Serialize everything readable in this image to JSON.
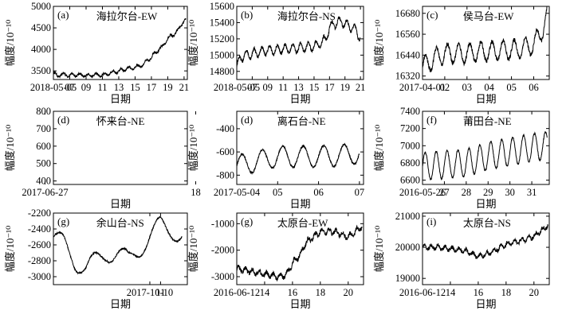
{
  "chart_data": [
    {
      "type": "line",
      "panel_label": "(a)",
      "title": "海拉尔台-EW",
      "xlabel": "日期",
      "ylabel": "幅度/10⁻¹⁰",
      "xlim": [
        5,
        21.4
      ],
      "ylim": [
        3300,
        5000
      ],
      "xticks": [
        5,
        7,
        9,
        11,
        13,
        15,
        17,
        19,
        21
      ],
      "xtick_labels": [
        "2018-05-05",
        "07",
        "09",
        "11",
        "13",
        "15",
        "17",
        "19",
        "21"
      ],
      "yticks": [
        3500,
        4000,
        4500,
        5000
      ],
      "ytick_labels": [
        "3500",
        "4000",
        "4500",
        "5000"
      ],
      "series": [
        {
          "x": [
            5,
            5.5,
            6,
            7,
            8,
            9,
            10,
            11,
            12,
            12.5,
            13,
            13.5,
            14,
            14.5,
            15,
            15.5,
            16,
            16.5,
            17,
            17.3,
            17.8,
            18.3,
            18.8,
            19.3,
            19.8,
            20.3,
            20.8,
            21.2
          ],
          "y": [
            3450,
            3380,
            3420,
            3400,
            3410,
            3390,
            3410,
            3400,
            3450,
            3480,
            3500,
            3520,
            3550,
            3560,
            3580,
            3620,
            3640,
            3750,
            3800,
            3900,
            3980,
            4050,
            4200,
            4300,
            4350,
            4450,
            4620,
            4680
          ],
          "noise": 25,
          "wave_period": 1,
          "wave_amp": 35
        }
      ]
    },
    {
      "type": "line",
      "panel_label": "(b)",
      "title": "海拉尔台-NS",
      "xlabel": "日期",
      "ylabel": "幅度/10⁻¹⁰",
      "xlim": [
        5,
        21.4
      ],
      "ylim": [
        14700,
        15600
      ],
      "xticks": [
        5,
        7,
        9,
        11,
        13,
        15,
        17,
        19,
        21
      ],
      "xtick_labels": [
        "2018-05-05",
        "07",
        "09",
        "11",
        "13",
        "15",
        "17",
        "19",
        "21"
      ],
      "yticks": [
        14800,
        15000,
        15200,
        15400,
        15600
      ],
      "ytick_labels": [
        "14800",
        "15000",
        "15200",
        "15400",
        "15600"
      ],
      "series": [
        {
          "x": [
            5,
            5.5,
            6,
            7,
            8,
            9,
            10,
            11,
            12,
            13,
            14,
            15,
            16,
            16.5,
            17,
            17.5,
            18,
            18.5,
            19,
            19.5,
            20,
            20.5,
            21
          ],
          "y": [
            14860,
            14960,
            15000,
            15020,
            15040,
            15060,
            15060,
            15080,
            15080,
            15090,
            15100,
            15110,
            15150,
            15200,
            15330,
            15380,
            15400,
            15420,
            15380,
            15360,
            15330,
            15300,
            15200
          ],
          "noise": 20,
          "wave_period": 1,
          "wave_amp": 55
        }
      ]
    },
    {
      "type": "line",
      "panel_label": "(c)",
      "title": "侯马台-EW",
      "xlabel": "日期",
      "ylabel": "幅度/10⁻¹⁰",
      "xlim": [
        1,
        6.7
      ],
      "ylim": [
        16300,
        16720
      ],
      "xticks": [
        1,
        2,
        3,
        4,
        5,
        6
      ],
      "xtick_labels": [
        "2017-04-01",
        "02",
        "03",
        "04",
        "05",
        "06"
      ],
      "yticks": [
        16320,
        16440,
        16560,
        16680
      ],
      "ytick_labels": [
        "16320",
        "16440",
        "16560",
        "16680"
      ],
      "series": [
        {
          "x": [
            1,
            1.5,
            2,
            2.5,
            3,
            3.5,
            4,
            4.5,
            5,
            5.5,
            6,
            6.3,
            6.6
          ],
          "y": [
            16370,
            16420,
            16450,
            16450,
            16450,
            16460,
            16460,
            16470,
            16470,
            16480,
            16500,
            16560,
            16660
          ],
          "noise": 12,
          "wave_period": 0.5,
          "wave_amp": 55
        }
      ]
    },
    {
      "type": "line",
      "panel_label": "(d)",
      "title": "怀来台-NE",
      "xlabel": "日期",
      "ylabel": "幅度/10⁻¹⁰",
      "xlim": [
        26.5,
        18.5
      ],
      "ylim": [
        380,
        800
      ],
      "xticks": [
        27,
        18
      ],
      "xtick_labels": [
        "2017-06-27",
        "18"
      ],
      "yticks": [
        400,
        500,
        600,
        700,
        800
      ],
      "ytick_labels": [
        "400",
        "500",
        "600",
        "700",
        "800"
      ],
      "series": [
        {
          "x": [
            26.5,
            26.9,
            27.2,
            27.7,
            28.1,
            28.6,
            29.2,
            29.9,
            30.5,
            31.2,
            31.9,
            32.6,
            33.3,
            33.7,
            34
          ],
          "y": [
            500,
            640,
            720,
            700,
            470,
            430,
            560,
            680,
            560,
            460,
            560,
            700,
            600,
            430,
            470
          ],
          "noise": 6,
          "wave_period": 0.5,
          "wave_amp": 14
        }
      ]
    },
    {
      "type": "line",
      "panel_label": "(d)",
      "title": "离石台-NE",
      "xlabel": "日期",
      "ylabel": "幅度/10⁻¹⁰",
      "xlim": [
        4,
        7.1
      ],
      "ylim": [
        -880,
        -250
      ],
      "xticks": [
        4,
        5,
        6,
        7
      ],
      "xtick_labels": [
        "2017-05-04",
        "05",
        "06",
        "07"
      ],
      "yticks": [
        -800,
        -600,
        -400
      ],
      "ytick_labels": [
        "-800",
        "-600",
        "-400"
      ],
      "series": [
        {
          "x": [
            4,
            4.5,
            5,
            5.5,
            6,
            6.5,
            7
          ],
          "y": [
            -720,
            -680,
            -640,
            -640,
            -640,
            -630,
            -610
          ],
          "noise": 8,
          "wave_period": 0.5,
          "wave_amp": 90
        }
      ]
    },
    {
      "type": "line",
      "panel_label": "(f)",
      "title": "莆田台-NE",
      "xlabel": "日期",
      "ylabel": "幅度/10⁻¹⁰",
      "xlim": [
        26,
        31.8
      ],
      "ylim": [
        6550,
        7400
      ],
      "xticks": [
        26,
        27,
        28,
        29,
        30,
        31
      ],
      "xtick_labels": [
        "2016-05-26",
        "27",
        "28",
        "29",
        "30",
        "31"
      ],
      "yticks": [
        6600,
        6800,
        7000,
        7200,
        7400
      ],
      "ytick_labels": [
        "6600",
        "6800",
        "7000",
        "7200",
        "7400"
      ],
      "series": [
        {
          "x": [
            26,
            27,
            28,
            29,
            30,
            31,
            31.7
          ],
          "y": [
            6760,
            6780,
            6800,
            6880,
            6930,
            6980,
            7000
          ],
          "noise": 10,
          "wave_period": 0.5,
          "wave_amp": 160
        }
      ]
    },
    {
      "type": "line",
      "panel_label": "(g)",
      "title": "余山台-NS",
      "xlabel": "日期",
      "ylabel": "幅度/10⁻¹⁰",
      "xlim": [
        1,
        13.5
      ],
      "ylim": [
        -3100,
        -2200
      ],
      "xticks": [
        10,
        11
      ],
      "xtick_labels": [
        "2017-10-10",
        "11"
      ],
      "yticks": [
        -3000,
        -2800,
        -2600,
        -2400,
        -2200
      ],
      "ytick_labels": [
        "-3000",
        "-2800",
        "-2600",
        "-2400",
        "-2200"
      ],
      "series": [
        {
          "x": [
            1,
            2,
            3,
            4,
            5,
            6,
            7,
            8,
            9,
            10,
            11,
            12,
            13
          ],
          "y": [
            -2500,
            -2600,
            -2800,
            -2900,
            -2800,
            -2700,
            -2700,
            -2800,
            -2650,
            -2500,
            -2350,
            -2400,
            -2500
          ],
          "noise": 10,
          "wave_period": 3,
          "wave_amp": 120
        }
      ]
    },
    {
      "type": "line",
      "panel_label": "(g)",
      "title": "太原台-EW",
      "xlabel": "日期",
      "ylabel": "幅度/10⁻¹⁰",
      "xlim": [
        12,
        21.1
      ],
      "ylim": [
        -3300,
        -600
      ],
      "xticks": [
        12,
        14,
        16,
        18,
        20
      ],
      "xtick_labels": [
        "2016-06-12",
        "14",
        "16",
        "18",
        "20"
      ],
      "yticks": [
        -3000,
        -2000,
        -1000
      ],
      "ytick_labels": [
        "-3000",
        "-2000",
        "-1000"
      ],
      "series": [
        {
          "x": [
            12,
            13,
            14,
            15,
            15.5,
            16,
            16.5,
            17,
            17.5,
            18,
            19,
            20,
            21
          ],
          "y": [
            -2700,
            -2800,
            -2900,
            -3000,
            -2950,
            -2500,
            -2200,
            -1700,
            -1500,
            -1300,
            -1300,
            -1500,
            -1100
          ],
          "noise": 80,
          "wave_period": 0.5,
          "wave_amp": 90
        }
      ]
    },
    {
      "type": "line",
      "panel_label": "(i)",
      "title": "太原台-NS",
      "xlabel": "日期",
      "ylabel": "幅度/10⁻¹⁰",
      "xlim": [
        12,
        21.1
      ],
      "ylim": [
        18800,
        21100
      ],
      "xticks": [
        12,
        14,
        16,
        18,
        20
      ],
      "xtick_labels": [
        "2016-06-12",
        "14",
        "16",
        "18",
        "20"
      ],
      "yticks": [
        19000,
        20000,
        21000
      ],
      "ytick_labels": [
        "19000",
        "20000",
        "21000"
      ],
      "series": [
        {
          "x": [
            12,
            13,
            14,
            15,
            16,
            17,
            18,
            19,
            20,
            21
          ],
          "y": [
            20000,
            20000,
            19950,
            19900,
            19700,
            19850,
            20100,
            20200,
            20350,
            20700
          ],
          "noise": 60,
          "wave_period": 0.5,
          "wave_amp": 60
        }
      ]
    }
  ]
}
